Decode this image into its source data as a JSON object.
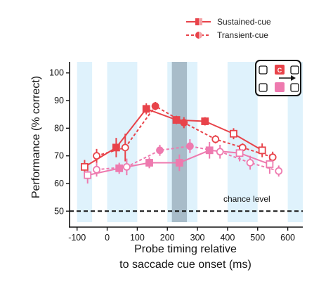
{
  "chart_data": {
    "type": "line",
    "xlabel_lines": [
      "Probe timing relative",
      "to saccade cue onset (ms)"
    ],
    "ylabel": "Performance (% correct)",
    "xlim": [
      -125,
      650
    ],
    "ylim": [
      46,
      104
    ],
    "xticks": [
      -100,
      0,
      100,
      200,
      300,
      400,
      500,
      600
    ],
    "yticks": [
      50,
      60,
      70,
      80,
      90,
      100
    ],
    "x_tick_labels": [
      "-100",
      "0",
      "100",
      "200",
      "300",
      "400",
      "500",
      "600"
    ],
    "y_tick_labels": [
      "50",
      "60",
      "70",
      "80",
      "90",
      "100"
    ],
    "chance_level": 50,
    "chance_label": "chance level",
    "shaded_windows": [
      [
        -100,
        -50
      ],
      [
        0,
        100
      ],
      [
        200,
        300
      ],
      [
        400,
        500
      ],
      [
        600,
        650
      ]
    ],
    "highlight_window": [
      215,
      265
    ],
    "legend": {
      "position": "top-right",
      "entries": [
        "Sustained-cue",
        "Transient-cue"
      ]
    },
    "inset": {
      "cue_letter": "C"
    },
    "colors": {
      "dark": "#e8434a",
      "light": "#ee7aaf",
      "shade": "#dff2fc",
      "highlight": "#9fb3bf"
    },
    "series": [
      {
        "name": "Sustained-cue",
        "color": "dark",
        "style": "solid",
        "marker": "square",
        "fill": "filled",
        "x": [
          -75,
          30,
          130,
          230,
          325,
          420,
          515
        ],
        "y": [
          66,
          73,
          87,
          83,
          82.5,
          78,
          72
        ],
        "err": [
          2.5,
          3.5,
          2,
          1.5,
          1.5,
          2,
          2.5
        ],
        "filled": [
          false,
          true,
          true,
          true,
          true,
          false,
          false
        ]
      },
      {
        "name": "Transient-cue",
        "color": "dark",
        "style": "dashed",
        "marker": "circle",
        "fill": "filled",
        "x": [
          -35,
          60,
          160,
          255,
          360,
          450,
          550
        ],
        "y": [
          70,
          73,
          88,
          82,
          76,
          73,
          69.5
        ],
        "err": [
          2.5,
          5,
          1.5,
          2,
          1.5,
          1.5,
          2
        ],
        "filled": [
          false,
          false,
          true,
          true,
          false,
          false,
          false
        ]
      },
      {
        "color": "light",
        "style": "solid",
        "marker": "square",
        "fill": "filled",
        "x": [
          -65,
          40,
          140,
          240,
          340,
          440,
          540
        ],
        "y": [
          63,
          65.5,
          67.5,
          67.5,
          72,
          71,
          67
        ],
        "err": [
          3,
          2,
          2,
          3,
          3,
          3,
          3.5
        ],
        "filled": [
          false,
          true,
          true,
          true,
          true,
          false,
          false
        ]
      },
      {
        "color": "light",
        "style": "dashed",
        "marker": "circle",
        "fill": "filled",
        "x": [
          -35,
          65,
          175,
          275,
          375,
          475,
          570
        ],
        "y": [
          65,
          66,
          72,
          73.5,
          71.5,
          67.5,
          64.5
        ],
        "err": [
          2.5,
          3,
          2,
          2.5,
          2.5,
          2.5,
          2
        ],
        "filled": [
          false,
          false,
          true,
          true,
          false,
          false,
          false
        ]
      }
    ]
  }
}
